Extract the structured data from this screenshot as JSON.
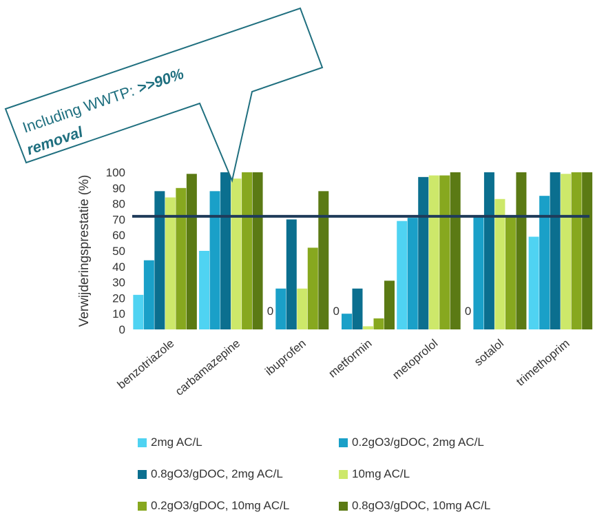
{
  "chart_data": {
    "type": "bar",
    "categories": [
      "benzotriazole",
      "carbamazepine",
      "ibuprofen",
      "metformin",
      "metoprolol",
      "sotalol",
      "trimethoprim"
    ],
    "ylabel": "Verwijderingsprestatie (%)",
    "xlabel": "",
    "title": "",
    "ylim": [
      0,
      100
    ],
    "yticks": [
      "0",
      "10",
      "20",
      "30",
      "40",
      "50",
      "60",
      "70",
      "80",
      "90",
      "100"
    ],
    "threshold": 72,
    "series": [
      {
        "name": "2mg AC/L",
        "color": "#4fd3f2",
        "values": [
          22,
          50,
          0,
          0,
          69,
          0,
          59
        ]
      },
      {
        "name": "0.2gO3/gDOC, 2mg AC/L",
        "color": "#1aa0c8",
        "values": [
          44,
          88,
          26,
          10,
          71,
          72,
          85
        ]
      },
      {
        "name": "0.8gO3/gDOC, 2mg AC/L",
        "color": "#0b6f8f",
        "values": [
          88,
          100,
          70,
          26,
          97,
          100,
          100
        ]
      },
      {
        "name": "10mg AC/L",
        "color": "#cde86a",
        "values": [
          84,
          96,
          26,
          2,
          98,
          83,
          99
        ]
      },
      {
        "name": "0.2gO3/gDOC, 10mg AC/L",
        "color": "#87a81f",
        "values": [
          90,
          100,
          52,
          7,
          98,
          72,
          100
        ]
      },
      {
        "name": "0.8gO3/gDOC, 10mg AC/L",
        "color": "#5b7a14",
        "values": [
          99,
          100,
          88,
          31,
          100,
          100,
          100
        ]
      }
    ],
    "zero_labels": [
      {
        "category": "ibuprofen",
        "text": "0"
      },
      {
        "category": "metformin",
        "text": "0"
      },
      {
        "category": "sotalol",
        "text": "0"
      }
    ],
    "annotation": {
      "text_line1": "Including  WWTP: ",
      "text_bold1": ">>90%",
      "text_bold2": "removal"
    },
    "legend_placement": "bottom"
  }
}
